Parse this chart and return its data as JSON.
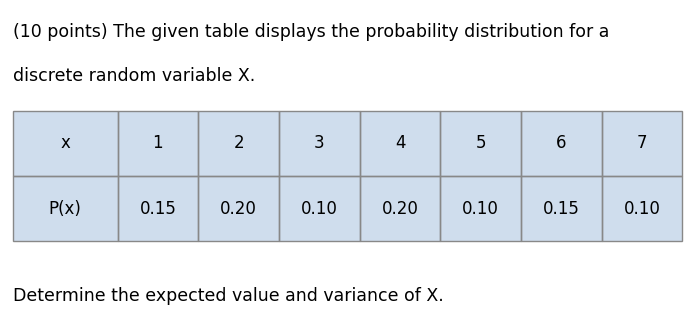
{
  "title_line1": "(10 points) The given table displays the probability distribution for a",
  "title_line2": "discrete random variable X.",
  "footer_text": "Determine the expected value and variance of X.",
  "table_bg_color": "#cfdded",
  "header_row": [
    "x",
    "1",
    "2",
    "3",
    "4",
    "5",
    "6",
    "7"
  ],
  "data_row": [
    "P(x)",
    "0.15",
    "0.20",
    "0.10",
    "0.20",
    "0.10",
    "0.15",
    "0.10"
  ],
  "bg_color": "#ffffff",
  "text_color": "#000000",
  "table_border_color": "#888888",
  "font_size_title": 12.5,
  "font_size_table": 12,
  "font_size_footer": 12.5
}
